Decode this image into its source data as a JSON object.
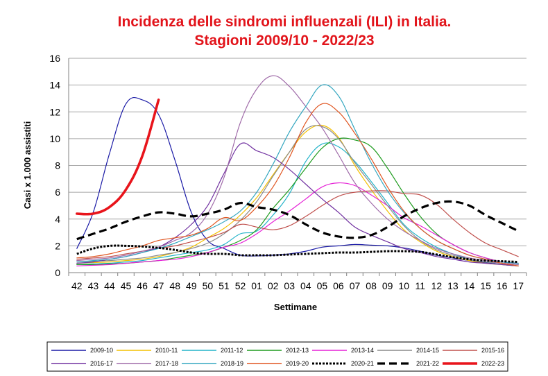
{
  "chart_data": {
    "type": "line",
    "title": "Incidenza delle sindromi influenzali (ILI) in Italia.",
    "subtitle": "Stagioni 2009/10 - 2022/23",
    "xlabel": "Settimane",
    "ylabel": "Casi x 1.000 assistiti",
    "ylim": [
      0,
      16
    ],
    "yticks": [
      "0",
      "2",
      "4",
      "6",
      "8",
      "10",
      "12",
      "14",
      "16"
    ],
    "categories": [
      "42",
      "43",
      "44",
      "45",
      "46",
      "47",
      "48",
      "49",
      "50",
      "51",
      "52",
      "01",
      "02",
      "03",
      "04",
      "05",
      "06",
      "07",
      "08",
      "09",
      "10",
      "11",
      "12",
      "13",
      "14",
      "15",
      "16",
      "17"
    ],
    "grid": true,
    "legend_position": "bottom",
    "series": [
      {
        "name": "2009-10",
        "color": "#1a1aa6",
        "style": "solid",
        "values": [
          1.8,
          4.5,
          8.9,
          12.6,
          12.9,
          11.8,
          8.4,
          4.5,
          2.4,
          1.8,
          1.3,
          1.25,
          1.3,
          1.4,
          1.6,
          1.9,
          2.0,
          2.1,
          2.05,
          2.0,
          1.85,
          1.6,
          1.3,
          1.1,
          0.9,
          0.75,
          0.6,
          0.5
        ]
      },
      {
        "name": "2010-11",
        "color": "#f4c000",
        "style": "solid",
        "values": [
          0.7,
          0.75,
          0.8,
          0.9,
          1.0,
          1.2,
          1.5,
          1.9,
          2.6,
          3.3,
          4.3,
          5.6,
          7.3,
          9.0,
          10.5,
          11.0,
          10.1,
          8.0,
          6.2,
          4.6,
          3.2,
          2.3,
          1.6,
          1.2,
          0.9,
          0.7,
          0.6,
          0.5
        ]
      },
      {
        "name": "2011-12",
        "color": "#22b3c9",
        "style": "solid",
        "values": [
          0.6,
          0.65,
          0.7,
          0.8,
          0.9,
          1.1,
          1.3,
          1.5,
          1.7,
          2.1,
          2.9,
          3.1,
          4.3,
          5.9,
          8.3,
          9.6,
          9.4,
          8.3,
          6.8,
          5.2,
          3.6,
          2.6,
          1.9,
          1.4,
          1.0,
          0.8,
          0.7,
          0.6
        ]
      },
      {
        "name": "2012-13",
        "color": "#1f9c1f",
        "style": "solid",
        "values": [
          0.6,
          0.6,
          0.65,
          0.7,
          0.8,
          0.9,
          1.1,
          1.3,
          1.5,
          1.9,
          2.4,
          3.2,
          4.8,
          6.2,
          7.8,
          9.3,
          10.0,
          9.9,
          9.4,
          7.8,
          5.9,
          4.2,
          2.9,
          2.1,
          1.5,
          1.1,
          0.8,
          0.7
        ]
      },
      {
        "name": "2013-14",
        "color": "#e521d6",
        "style": "solid",
        "values": [
          0.5,
          0.55,
          0.6,
          0.7,
          0.8,
          0.9,
          1.0,
          1.2,
          1.5,
          1.9,
          2.2,
          2.9,
          3.8,
          4.6,
          5.5,
          6.4,
          6.7,
          6.5,
          5.8,
          5.0,
          4.1,
          3.5,
          2.8,
          2.1,
          1.5,
          1.1,
          0.8,
          0.7
        ]
      },
      {
        "name": "2014-15",
        "color": "#8a8a8a",
        "style": "solid",
        "values": [
          0.8,
          0.85,
          0.9,
          1.0,
          1.1,
          1.3,
          1.5,
          1.8,
          2.2,
          2.9,
          3.9,
          5.3,
          7.2,
          9.0,
          10.7,
          10.9,
          10.0,
          8.2,
          6.6,
          5.0,
          3.5,
          2.4,
          1.7,
          1.3,
          1.0,
          0.8,
          0.7,
          0.6
        ]
      },
      {
        "name": "2015-16",
        "color": "#c0504d",
        "style": "solid",
        "values": [
          1.0,
          1.1,
          1.2,
          1.4,
          1.6,
          1.8,
          2.0,
          2.3,
          2.6,
          3.0,
          3.6,
          3.4,
          3.2,
          3.5,
          4.2,
          5.0,
          5.7,
          6.0,
          6.1,
          6.1,
          5.9,
          5.8,
          5.1,
          4.0,
          3.0,
          2.2,
          1.7,
          1.2
        ]
      },
      {
        "name": "2016-17",
        "color": "#7030a0",
        "style": "solid",
        "values": [
          0.7,
          0.8,
          1.0,
          1.2,
          1.5,
          1.9,
          2.6,
          3.6,
          5.0,
          7.4,
          9.6,
          9.1,
          8.6,
          7.7,
          6.6,
          5.5,
          4.5,
          3.4,
          2.8,
          2.3,
          1.8,
          1.5,
          1.2,
          1.0,
          0.8,
          0.7,
          0.6,
          0.5
        ]
      },
      {
        "name": "2017-18",
        "color": "#9f6aa8",
        "style": "solid",
        "values": [
          0.9,
          1.0,
          1.1,
          1.3,
          1.6,
          1.9,
          2.4,
          3.0,
          4.4,
          7.1,
          11.2,
          13.7,
          14.7,
          13.9,
          12.4,
          10.8,
          8.8,
          6.7,
          5.2,
          4.0,
          3.1,
          2.4,
          1.8,
          1.4,
          1.1,
          0.9,
          0.7,
          0.6
        ]
      },
      {
        "name": "2018-19",
        "color": "#35a7c0",
        "style": "solid",
        "values": [
          0.8,
          0.9,
          1.0,
          1.2,
          1.5,
          1.8,
          2.2,
          2.7,
          3.2,
          3.8,
          4.6,
          6.0,
          8.1,
          10.5,
          12.4,
          14.0,
          13.2,
          10.7,
          8.2,
          6.1,
          4.5,
          3.3,
          2.4,
          1.8,
          1.3,
          1.0,
          0.8,
          0.7
        ]
      },
      {
        "name": "2019-20",
        "color": "#e05520",
        "style": "solid",
        "values": [
          1.1,
          1.2,
          1.4,
          1.7,
          2.0,
          2.4,
          2.6,
          2.8,
          3.3,
          4.1,
          3.9,
          4.9,
          6.4,
          8.6,
          11.2,
          12.6,
          12.0,
          10.4,
          8.5,
          6.4,
          4.6,
          3.3,
          2.4,
          1.8,
          1.3,
          1.0,
          0.7,
          0.5
        ]
      },
      {
        "name": "2020-21",
        "color": "#000000",
        "style": "dotted",
        "values": [
          1.4,
          1.8,
          2.0,
          2.0,
          1.95,
          1.85,
          1.7,
          1.5,
          1.4,
          1.4,
          1.3,
          1.3,
          1.3,
          1.35,
          1.4,
          1.45,
          1.5,
          1.5,
          1.55,
          1.6,
          1.6,
          1.55,
          1.35,
          1.15,
          1.0,
          0.9,
          0.85,
          0.8
        ]
      },
      {
        "name": "2021-22",
        "color": "#000000",
        "style": "dashed",
        "values": [
          2.5,
          2.9,
          3.3,
          3.8,
          4.2,
          4.5,
          4.4,
          4.2,
          4.4,
          4.7,
          5.2,
          4.9,
          4.7,
          4.3,
          3.6,
          3.0,
          2.7,
          2.6,
          2.8,
          3.4,
          4.2,
          4.8,
          5.2,
          5.3,
          5.0,
          4.3,
          3.7,
          3.1
        ]
      },
      {
        "name": "2022-23",
        "color": "#e8141b",
        "style": "solid-thick",
        "values": [
          4.4,
          4.4,
          4.9,
          6.2,
          8.7,
          12.9,
          null,
          null,
          null,
          null,
          null,
          null,
          null,
          null,
          null,
          null,
          null,
          null,
          null,
          null,
          null,
          null,
          null,
          null,
          null,
          null,
          null,
          null
        ]
      }
    ]
  }
}
